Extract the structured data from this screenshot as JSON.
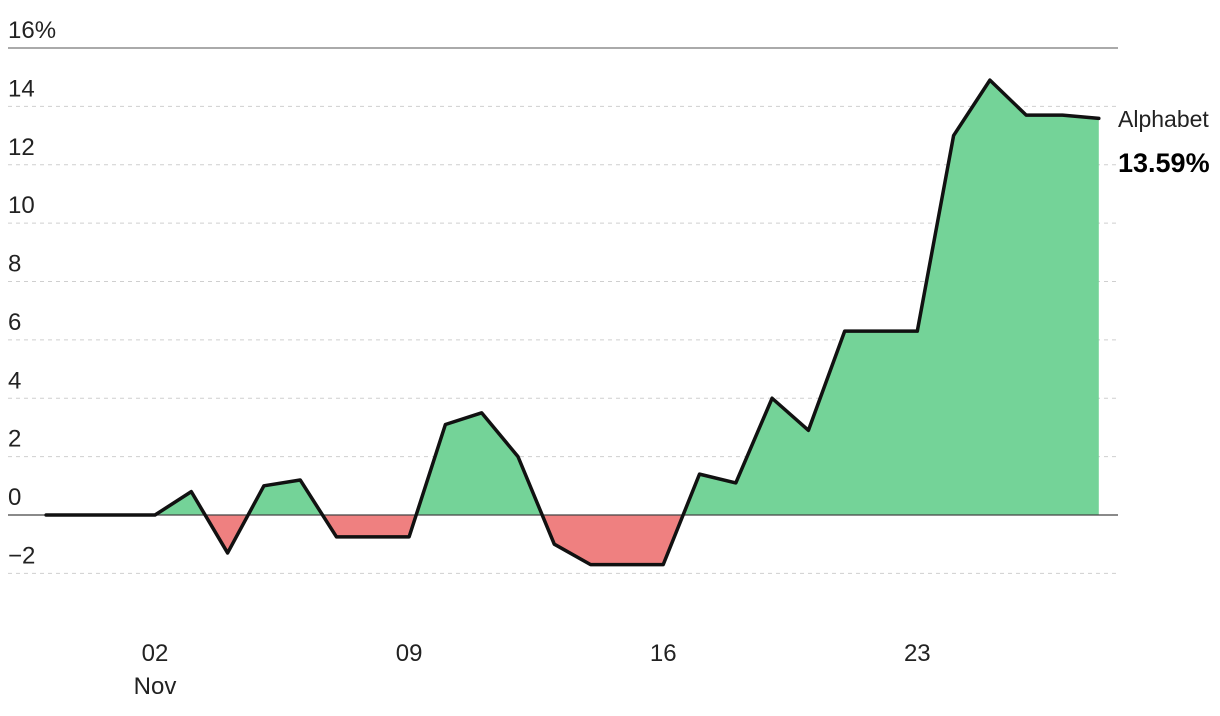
{
  "chart_data": {
    "type": "area",
    "y_tick_labels": [
      "16%",
      "14",
      "12",
      "10",
      "8",
      "6",
      "4",
      "2",
      "0",
      "−2"
    ],
    "y_ticks": [
      16,
      14,
      12,
      10,
      8,
      6,
      4,
      2,
      0,
      -2
    ],
    "ylim": [
      -2,
      16
    ],
    "x_tick_labels": [
      "02",
      "09",
      "16",
      "23"
    ],
    "x_ticks": [
      "2020-11-02",
      "2020-11-09",
      "2020-11-16",
      "2020-11-23"
    ],
    "x_month_label": "Nov",
    "grid": true,
    "series": [
      {
        "name": "Alphabet",
        "end_label": "13.59%",
        "x": [
          "2020-10-30",
          "2020-10-31",
          "2020-11-01",
          "2020-11-02",
          "2020-11-03",
          "2020-11-04",
          "2020-11-05",
          "2020-11-06",
          "2020-11-07",
          "2020-11-08",
          "2020-11-09",
          "2020-11-10",
          "2020-11-11",
          "2020-11-12",
          "2020-11-13",
          "2020-11-14",
          "2020-11-15",
          "2020-11-16",
          "2020-11-17",
          "2020-11-18",
          "2020-11-19",
          "2020-11-20",
          "2020-11-21",
          "2020-11-22",
          "2020-11-23",
          "2020-11-24",
          "2020-11-25",
          "2020-11-26",
          "2020-11-27",
          "2020-11-28"
        ],
        "values": [
          0,
          0,
          0,
          0,
          0.8,
          -1.3,
          1.0,
          1.2,
          -0.75,
          -0.75,
          -0.75,
          3.1,
          3.5,
          2.0,
          -1.0,
          -1.7,
          -1.7,
          -1.7,
          1.4,
          1.1,
          4.0,
          2.9,
          6.3,
          6.3,
          6.3,
          13.0,
          14.9,
          13.7,
          13.7,
          13.59
        ]
      }
    ],
    "colors": {
      "positive": "#74d398",
      "negative": "#ef8080",
      "line": "#111111"
    }
  }
}
